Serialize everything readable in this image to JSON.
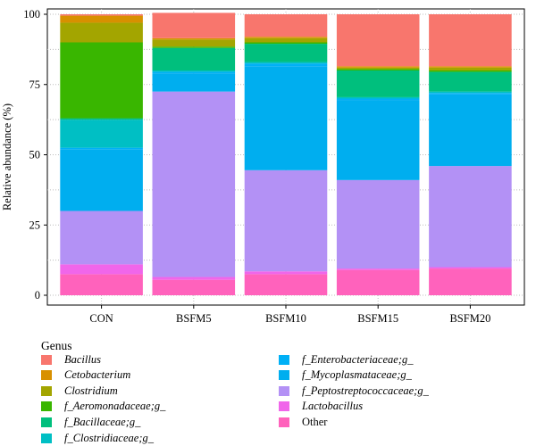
{
  "chart_data": {
    "type": "bar",
    "stacked": true,
    "ylabel": "Relative abundance (%)",
    "ylim": [
      0,
      100
    ],
    "yticks": [
      0,
      25,
      50,
      75,
      100
    ],
    "grid": true,
    "categories": [
      "CON",
      "BSFM5",
      "BSFM10",
      "BSFM15",
      "BSFM20"
    ],
    "legend": {
      "title": "Genus",
      "position": "bottom"
    },
    "series": [
      {
        "name": "Bacillus",
        "italic": true,
        "color": "#f8766d",
        "values": [
          0.5,
          9.0,
          8.0,
          18.5,
          18.5
        ]
      },
      {
        "name": "Cetobacterium",
        "italic": true,
        "color": "#d89000",
        "values": [
          2.5,
          0.5,
          0.5,
          0.5,
          0.5
        ]
      },
      {
        "name": "Clostridium",
        "italic": true,
        "color": "#a3a500",
        "values": [
          7.0,
          2.5,
          1.5,
          0.5,
          1.0
        ]
      },
      {
        "name": "f_Aeromonadaceae;g_",
        "italic": true,
        "color": "#39b600",
        "values": [
          27.0,
          0.5,
          0.5,
          0.5,
          0.5
        ]
      },
      {
        "name": "f_Bacillaceae;g_",
        "italic": true,
        "color": "#00bf7d",
        "values": [
          0.5,
          8.0,
          6.5,
          9.5,
          7.0
        ]
      },
      {
        "name": "f_Clostridiaceae;g_",
        "italic": true,
        "color": "#00bfc4",
        "values": [
          10.0,
          0.5,
          0.5,
          0.5,
          0.5
        ]
      },
      {
        "name": "f_Enterobacteriaceae;g_",
        "italic": true,
        "color": "#00b0f6",
        "values": [
          0.5,
          0.5,
          1.0,
          0.5,
          0.5
        ]
      },
      {
        "name": "f_Mycoplasmataceae;g_",
        "italic": true,
        "color": "#00aeef",
        "values": [
          22.0,
          6.5,
          37.0,
          28.5,
          25.5
        ]
      },
      {
        "name": "f_Peptostreptococcaceae;g_",
        "italic": true,
        "color": "#b391f5",
        "values": [
          19.0,
          66.0,
          36.0,
          31.5,
          36.0
        ]
      },
      {
        "name": "Lactobacillus",
        "italic": true,
        "color": "#f066ea",
        "values": [
          3.5,
          1.0,
          1.0,
          0.5,
          0.5
        ]
      },
      {
        "name": "Other",
        "italic": false,
        "color": "#ff62bc",
        "values": [
          7.5,
          5.5,
          7.5,
          9.0,
          9.5
        ]
      }
    ]
  }
}
